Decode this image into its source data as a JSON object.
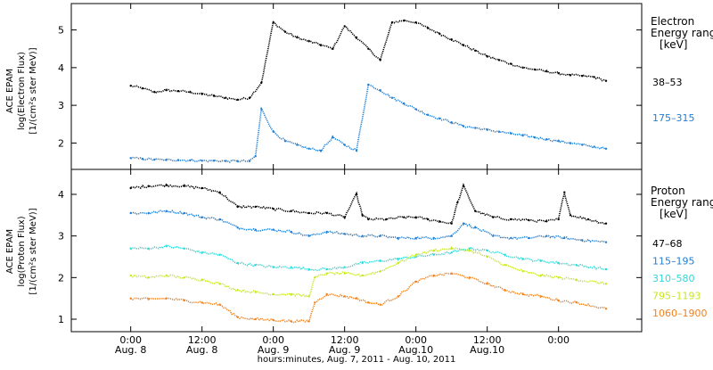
{
  "chart_data": [
    {
      "panel": "electron",
      "type": "scatter",
      "ylabel_lines": [
        "ACE EPAM",
        "log(Electron Flux)",
        "[1/(cm²s ster MeV)]"
      ],
      "ylim": [
        1.3,
        5.7
      ],
      "yticks": [
        2,
        3,
        4,
        5
      ],
      "legend_title_lines": [
        "Electron",
        "Energy range",
        "[keV]"
      ],
      "series": [
        {
          "name": "38–53",
          "color": "#000000",
          "x": [
            0,
            2,
            4,
            6,
            8,
            10,
            12,
            14,
            16,
            18,
            20,
            22,
            24,
            26,
            28,
            30,
            32,
            34,
            36,
            38,
            40,
            42,
            44,
            46,
            48,
            50,
            52,
            54,
            56,
            58,
            60,
            62,
            64,
            66,
            68,
            70,
            72,
            74,
            76,
            78,
            80
          ],
          "y": [
            3.52,
            3.45,
            3.35,
            3.4,
            3.38,
            3.35,
            3.3,
            3.25,
            3.2,
            3.15,
            3.2,
            3.6,
            5.2,
            4.95,
            4.8,
            4.7,
            4.6,
            4.5,
            5.1,
            4.8,
            4.5,
            4.2,
            5.2,
            5.25,
            5.2,
            5.05,
            4.9,
            4.75,
            4.6,
            4.45,
            4.3,
            4.2,
            4.1,
            4.0,
            3.95,
            3.9,
            3.85,
            3.8,
            3.78,
            3.75,
            3.65
          ]
        },
        {
          "name": "175–315",
          "color": "#1f7fd4",
          "x": [
            0,
            2,
            4,
            6,
            8,
            10,
            12,
            14,
            16,
            18,
            20,
            21,
            22,
            24,
            26,
            28,
            30,
            32,
            34,
            36,
            38,
            40,
            42,
            44,
            46,
            48,
            50,
            52,
            54,
            56,
            58,
            60,
            62,
            64,
            66,
            68,
            70,
            72,
            74,
            76,
            78,
            80
          ],
          "y": [
            1.6,
            1.58,
            1.56,
            1.55,
            1.55,
            1.54,
            1.53,
            1.53,
            1.52,
            1.52,
            1.52,
            1.65,
            2.9,
            2.3,
            2.05,
            1.95,
            1.85,
            1.8,
            2.15,
            1.95,
            1.8,
            3.55,
            3.4,
            3.2,
            3.05,
            2.9,
            2.75,
            2.65,
            2.55,
            2.45,
            2.4,
            2.35,
            2.3,
            2.25,
            2.2,
            2.15,
            2.1,
            2.05,
            2.0,
            1.95,
            1.9,
            1.85
          ]
        }
      ]
    },
    {
      "panel": "proton",
      "type": "scatter",
      "ylabel_lines": [
        "ACE EPAM",
        "log(Proton Flux)",
        "[1/(cm²s ster MeV)]"
      ],
      "ylim": [
        0.7,
        4.6
      ],
      "yticks": [
        1,
        2,
        3,
        4
      ],
      "legend_title_lines": [
        "Proton",
        "Energy range",
        "[keV]"
      ],
      "series": [
        {
          "name": "47–68",
          "color": "#000000",
          "x": [
            0,
            3,
            6,
            9,
            12,
            15,
            18,
            21,
            24,
            27,
            30,
            33,
            36,
            38,
            39,
            40,
            43,
            46,
            48,
            50,
            52,
            54,
            55,
            56,
            58,
            61,
            64,
            67,
            70,
            72,
            73,
            74,
            77,
            80
          ],
          "y": [
            4.15,
            4.2,
            4.22,
            4.2,
            4.15,
            4.05,
            3.7,
            3.7,
            3.65,
            3.6,
            3.55,
            3.55,
            3.45,
            4.0,
            3.5,
            3.4,
            3.4,
            3.45,
            3.45,
            3.4,
            3.35,
            3.3,
            3.8,
            4.2,
            3.6,
            3.45,
            3.4,
            3.38,
            3.35,
            3.4,
            4.05,
            3.5,
            3.4,
            3.3
          ]
        },
        {
          "name": "115–195",
          "color": "#1f7fd4",
          "x": [
            0,
            3,
            6,
            9,
            12,
            15,
            18,
            21,
            24,
            27,
            30,
            33,
            36,
            39,
            42,
            45,
            48,
            51,
            54,
            56,
            58,
            61,
            64,
            67,
            70,
            73,
            76,
            80
          ],
          "y": [
            3.55,
            3.55,
            3.6,
            3.55,
            3.45,
            3.4,
            3.2,
            3.15,
            3.15,
            3.1,
            3.0,
            3.1,
            3.05,
            3.0,
            3.0,
            2.95,
            2.95,
            2.95,
            3.0,
            3.3,
            3.2,
            3.0,
            2.95,
            2.95,
            3.0,
            2.95,
            2.9,
            2.85
          ]
        },
        {
          "name": "310–580",
          "color": "#2fd8d8",
          "x": [
            0,
            3,
            6,
            9,
            12,
            15,
            18,
            21,
            24,
            27,
            30,
            33,
            36,
            39,
            42,
            45,
            48,
            51,
            54,
            57,
            60,
            63,
            66,
            69,
            72,
            75,
            80
          ],
          "y": [
            2.7,
            2.7,
            2.75,
            2.7,
            2.6,
            2.55,
            2.35,
            2.3,
            2.25,
            2.25,
            2.2,
            2.2,
            2.25,
            2.35,
            2.4,
            2.45,
            2.5,
            2.55,
            2.6,
            2.7,
            2.65,
            2.55,
            2.45,
            2.4,
            2.35,
            2.3,
            2.2
          ]
        },
        {
          "name": "795–1193",
          "color": "#c8e620",
          "x": [
            0,
            3,
            6,
            9,
            12,
            15,
            18,
            21,
            24,
            27,
            30,
            31,
            33,
            36,
            39,
            42,
            45,
            48,
            51,
            54,
            57,
            60,
            63,
            66,
            69,
            72,
            75,
            80
          ],
          "y": [
            2.05,
            2.0,
            2.05,
            2.0,
            1.95,
            1.85,
            1.7,
            1.65,
            1.6,
            1.6,
            1.55,
            2.0,
            2.1,
            2.1,
            2.05,
            2.15,
            2.35,
            2.55,
            2.65,
            2.7,
            2.65,
            2.5,
            2.3,
            2.15,
            2.05,
            2.0,
            1.95,
            1.85
          ]
        },
        {
          "name": "1060–1900",
          "color": "#f0821e",
          "x": [
            0,
            3,
            6,
            9,
            12,
            15,
            18,
            21,
            24,
            27,
            30,
            31,
            33,
            36,
            38,
            40,
            42,
            45,
            48,
            51,
            54,
            57,
            60,
            63,
            66,
            69,
            72,
            75,
            80
          ],
          "y": [
            1.5,
            1.48,
            1.5,
            1.45,
            1.4,
            1.35,
            1.05,
            1.0,
            0.98,
            0.95,
            0.95,
            1.4,
            1.6,
            1.55,
            1.5,
            1.4,
            1.35,
            1.55,
            1.9,
            2.05,
            2.1,
            2.0,
            1.85,
            1.7,
            1.6,
            1.55,
            1.45,
            1.4,
            1.25
          ]
        }
      ]
    }
  ],
  "x_axis": {
    "xlim": [
      -10,
      86
    ],
    "tick_positions": [
      0,
      12,
      24,
      36,
      48,
      60,
      72
    ],
    "tick_labels": [
      "0:00",
      "12:00",
      "0:00",
      "12:00",
      "0:00",
      "12:00",
      "0:00"
    ],
    "tick_sublabels": [
      "Aug. 8",
      "Aug. 8",
      "Aug. 9",
      "Aug. 9",
      "Aug.10",
      "Aug.10",
      ""
    ],
    "xlabel": "hours:minutes, Aug.  7, 2011 - Aug. 10, 2011"
  }
}
